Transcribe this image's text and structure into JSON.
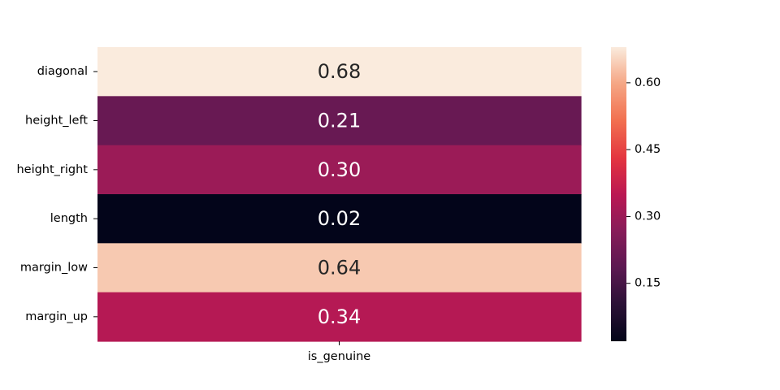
{
  "chart_data": {
    "type": "heatmap",
    "title": "",
    "xlabel": "",
    "ylabel": "",
    "columns": [
      "is_genuine"
    ],
    "rows": [
      "diagonal",
      "height_left",
      "height_right",
      "length",
      "margin_low",
      "margin_up"
    ],
    "values": [
      [
        0.68
      ],
      [
        0.21
      ],
      [
        0.3
      ],
      [
        0.02
      ],
      [
        0.64
      ],
      [
        0.34
      ]
    ],
    "annotations": [
      [
        "0.68"
      ],
      [
        "0.21"
      ],
      [
        "0.30"
      ],
      [
        "0.02"
      ],
      [
        "0.64"
      ],
      [
        "0.34"
      ]
    ],
    "colormap": "rocket",
    "colorbar": {
      "vmin": 0.02,
      "vmax": 0.68,
      "ticks": [
        0.15,
        0.3,
        0.45,
        0.6
      ],
      "tick_labels": [
        "0.15",
        "0.30",
        "0.45",
        "0.60"
      ]
    }
  }
}
